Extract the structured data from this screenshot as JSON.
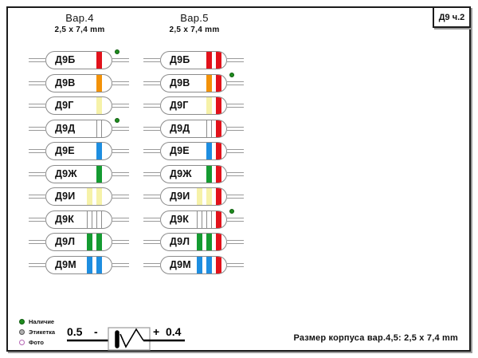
{
  "page": {
    "corner_label": "Д9 ч.2",
    "footer_note": "Размер корпуса вар.4,5: 2,5 x 7,4 mm"
  },
  "columns": [
    {
      "id": "var4",
      "title": "Вар.4",
      "subtitle": "2,5 x 7,4 mm"
    },
    {
      "id": "var5",
      "title": "Вар.5",
      "subtitle": "2,5 x 7,4 mm"
    }
  ],
  "colors": {
    "red": "#e2121b",
    "orange": "#f39208",
    "yellow": "#f6f2a8",
    "white": "#ffffff",
    "blue": "#1e8ee0",
    "green": "#149b31",
    "dot_green": "#1e8c1e"
  },
  "diodes": [
    {
      "label": "Д9Б",
      "var4": {
        "bands": [
          "red"
        ],
        "dot": true
      },
      "var5": {
        "bands": [
          "red",
          "red"
        ],
        "dot": false
      }
    },
    {
      "label": "Д9В",
      "var4": {
        "bands": [
          "orange"
        ],
        "dot": false
      },
      "var5": {
        "bands": [
          "orange",
          "red"
        ],
        "dot": true
      }
    },
    {
      "label": "Д9Г",
      "var4": {
        "bands": [
          "yellow"
        ],
        "dot": false
      },
      "var5": {
        "bands": [
          "yellow",
          "red"
        ],
        "dot": false
      }
    },
    {
      "label": "Д9Д",
      "var4": {
        "bands": [
          "white"
        ],
        "dot": true
      },
      "var5": {
        "bands": [
          "white",
          "red"
        ],
        "dot": false
      }
    },
    {
      "label": "Д9Е",
      "var4": {
        "bands": [
          "blue"
        ],
        "dot": false
      },
      "var5": {
        "bands": [
          "blue",
          "red"
        ],
        "dot": false
      }
    },
    {
      "label": "Д9Ж",
      "var4": {
        "bands": [
          "green"
        ],
        "dot": false
      },
      "var5": {
        "bands": [
          "green",
          "red"
        ],
        "dot": false
      }
    },
    {
      "label": "Д9И",
      "var4": {
        "bands": [
          "yellow",
          "yellow"
        ],
        "dot": false
      },
      "var5": {
        "bands": [
          "yellow",
          "yellow",
          "red"
        ],
        "dot": false
      }
    },
    {
      "label": "Д9К",
      "var4": {
        "bands": [
          "white",
          "white"
        ],
        "dot": false
      },
      "var5": {
        "bands": [
          "white",
          "white",
          "red"
        ],
        "dot": true
      }
    },
    {
      "label": "Д9Л",
      "var4": {
        "bands": [
          "green",
          "green"
        ],
        "dot": false
      },
      "var5": {
        "bands": [
          "green",
          "green",
          "red"
        ],
        "dot": false
      }
    },
    {
      "label": "Д9М",
      "var4": {
        "bands": [
          "blue",
          "blue"
        ],
        "dot": false
      },
      "var5": {
        "bands": [
          "blue",
          "blue",
          "red"
        ],
        "dot": false
      }
    }
  ],
  "legend": [
    {
      "marker": "green-dot",
      "label": "Наличие"
    },
    {
      "marker": "gray-ring",
      "label": "Этикетка"
    },
    {
      "marker": "violet-ring",
      "label": "Фото"
    }
  ],
  "polarity": {
    "left_value": "0.5",
    "left_sign": "-",
    "right_sign": "+",
    "right_value": "0.4"
  }
}
